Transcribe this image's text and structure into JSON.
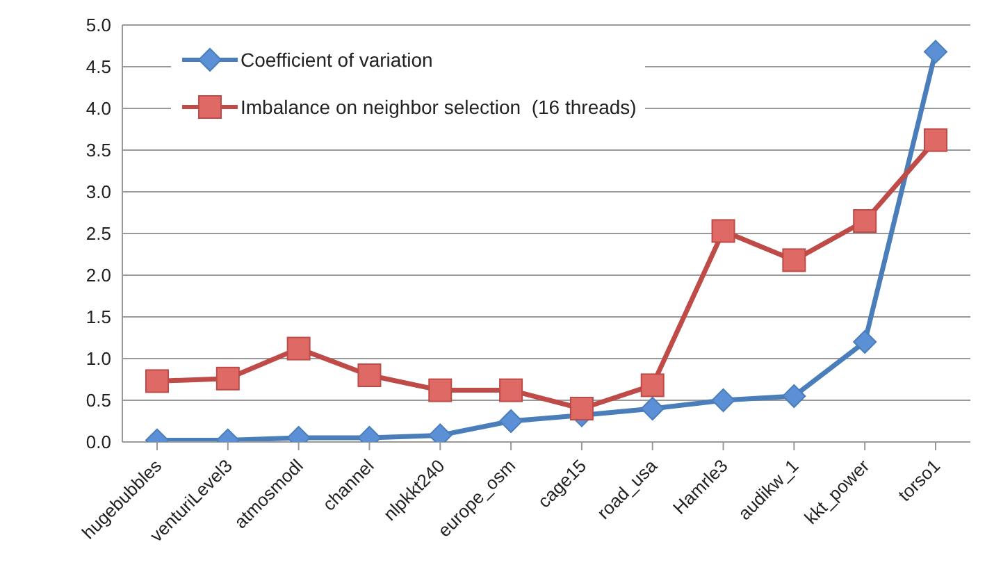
{
  "chart_data": {
    "type": "line",
    "categories": [
      "hugebubbles",
      "venturiLevel3",
      "atmosmodl",
      "channel",
      "nlpkkt240",
      "europe_osm",
      "cage15",
      "road_usa",
      "Hamrle3",
      "audikw_1",
      "kkt_power",
      "torso1"
    ],
    "series": [
      {
        "name": "Coefficient of variation",
        "color": "#4a7ebb",
        "marker": "diamond",
        "values": [
          0.02,
          0.02,
          0.05,
          0.05,
          0.08,
          0.25,
          0.32,
          0.4,
          0.5,
          0.55,
          1.2,
          4.68
        ]
      },
      {
        "name": "Imbalance on neighbor selection  (16 threads)",
        "color": "#be4b48",
        "marker": "square",
        "values": [
          0.73,
          0.76,
          1.12,
          0.8,
          0.62,
          0.62,
          0.4,
          0.68,
          2.53,
          2.18,
          2.65,
          3.62
        ]
      }
    ],
    "ylim": [
      0,
      5
    ],
    "yticks": [
      {
        "value": 0,
        "label": "0.0"
      },
      {
        "value": 0.5,
        "label": "0.5"
      },
      {
        "value": 1,
        "label": "1.0"
      },
      {
        "value": 1.5,
        "label": "1.5"
      },
      {
        "value": 2,
        "label": "2.0"
      },
      {
        "value": 2.5,
        "label": "2.5"
      },
      {
        "value": 3,
        "label": "3.0"
      },
      {
        "value": 3.5,
        "label": "3.5"
      },
      {
        "value": 4,
        "label": "4.0"
      },
      {
        "value": 4.5,
        "label": "4.5"
      },
      {
        "value": 5,
        "label": "5.0"
      }
    ],
    "grid": "y",
    "legend": "top left"
  }
}
